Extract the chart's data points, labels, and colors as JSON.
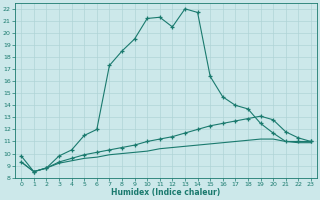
{
  "xlabel": "Humidex (Indice chaleur)",
  "bg_color": "#cce8ea",
  "grid_color": "#b0d4d6",
  "line_color": "#1a7a6e",
  "xlim": [
    -0.5,
    23.5
  ],
  "ylim": [
    8,
    22.5
  ],
  "xticks": [
    0,
    1,
    2,
    3,
    4,
    5,
    6,
    7,
    8,
    9,
    10,
    11,
    12,
    13,
    14,
    15,
    16,
    17,
    18,
    19,
    20,
    21,
    22,
    23
  ],
  "yticks": [
    8,
    9,
    10,
    11,
    12,
    13,
    14,
    15,
    16,
    17,
    18,
    19,
    20,
    21,
    22
  ],
  "line1_x": [
    0,
    1,
    2,
    3,
    4,
    5,
    6,
    7,
    8,
    9,
    10,
    11,
    12,
    13,
    14,
    15,
    16,
    17,
    18,
    19,
    20,
    21,
    22,
    23
  ],
  "line1_y": [
    9.8,
    8.5,
    8.8,
    9.8,
    10.3,
    11.5,
    12.0,
    17.3,
    18.5,
    19.5,
    21.2,
    21.3,
    20.5,
    22.0,
    21.7,
    16.4,
    14.7,
    14.0,
    13.7,
    12.5,
    11.7,
    11.0,
    11.0,
    11.0
  ],
  "line2_x": [
    0,
    1,
    2,
    3,
    4,
    5,
    6,
    7,
    8,
    9,
    10,
    11,
    12,
    13,
    14,
    15,
    16,
    17,
    18,
    19,
    20,
    21,
    22,
    23
  ],
  "line2_y": [
    9.3,
    8.5,
    8.8,
    9.3,
    9.6,
    9.9,
    10.1,
    10.3,
    10.5,
    10.7,
    11.0,
    11.2,
    11.4,
    11.7,
    12.0,
    12.3,
    12.5,
    12.7,
    12.9,
    13.1,
    12.8,
    11.8,
    11.3,
    11.0
  ],
  "line3_x": [
    0,
    1,
    2,
    3,
    4,
    5,
    6,
    7,
    8,
    9,
    10,
    11,
    12,
    13,
    14,
    15,
    16,
    17,
    18,
    19,
    20,
    21,
    22,
    23
  ],
  "line3_y": [
    9.3,
    8.5,
    8.8,
    9.2,
    9.4,
    9.6,
    9.7,
    9.9,
    10.0,
    10.1,
    10.2,
    10.4,
    10.5,
    10.6,
    10.7,
    10.8,
    10.9,
    11.0,
    11.1,
    11.2,
    11.2,
    11.0,
    10.9,
    10.9
  ]
}
